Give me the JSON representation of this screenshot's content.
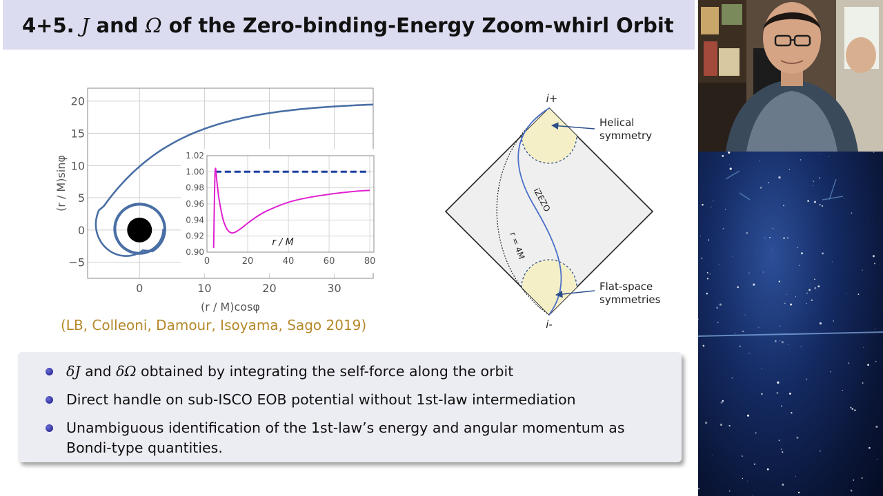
{
  "slide": {
    "title_prefix": "4+5.",
    "title_j": "J",
    "title_and": "and",
    "title_omega": "Ω",
    "title_rest": "of the Zero-binding-Energy Zoom-whirl Orbit"
  },
  "orbit_plot": {
    "chart_data": {
      "type": "line",
      "xlabel": "(r / M)cosφ",
      "ylabel": "(r / M)sinφ",
      "xlim": [
        -8,
        36
      ],
      "ylim": [
        -7.5,
        22
      ],
      "x_ticks": [
        "0",
        "10",
        "20",
        "30"
      ],
      "y_ticks": [
        "−5",
        "0",
        "5",
        "10",
        "15",
        "20"
      ],
      "series_color": "#4a6fa5",
      "black_hole_color": "#000000",
      "grid": true
    },
    "inset": {
      "chart_data": {
        "type": "line",
        "xlabel": "r / M",
        "xlim": [
          0,
          82
        ],
        "ylim": [
          0.9,
          1.02
        ],
        "x_ticks": [
          "0",
          "20",
          "40",
          "60",
          "80"
        ],
        "y_ticks": [
          "0.90",
          "0.92",
          "0.94",
          "0.96",
          "0.98",
          "1.00",
          "1.02"
        ],
        "series": [
          {
            "style": "dashed",
            "color": "#1a3fa0",
            "x": [
              4,
              80
            ],
            "y": [
              1.0,
              1.0
            ]
          },
          {
            "style": "solid",
            "color": "#e020d0",
            "x": [
              3.3,
              4,
              5,
              6,
              8,
              10,
              12,
              14,
              17,
              20,
              25,
              30,
              40,
              50,
              60,
              70,
              80
            ],
            "y": [
              0.905,
              1.0,
              0.985,
              0.965,
              0.94,
              0.928,
              0.924,
              0.925,
              0.93,
              0.936,
              0.945,
              0.952,
              0.962,
              0.968,
              0.972,
              0.975,
              0.977
            ]
          }
        ],
        "grid": true
      }
    }
  },
  "penrose": {
    "top_label": "i+",
    "bottom_label": "i-",
    "orbit_label": "iZEZO",
    "radius_label": "r = 4M",
    "helical_label_1": "Helical",
    "helical_label_2": "symmetry",
    "flat_label_1": "Flat-space",
    "flat_label_2": "symmetries"
  },
  "citation": "(LB, Colleoni, Damour, Isoyama, Sago 2019)",
  "bullets": {
    "b1_delta_j": "δJ",
    "b1_and": " and ",
    "b1_delta_omega": "δΩ",
    "b1_rest": " obtained by integrating the self-force along the orbit",
    "b2": "Direct handle on sub-ISCO EOB potential without 1st-law intermediation",
    "b3": "Unambiguous identification of the 1st-law’s energy and angular momentum as Bondi-type quantities."
  }
}
